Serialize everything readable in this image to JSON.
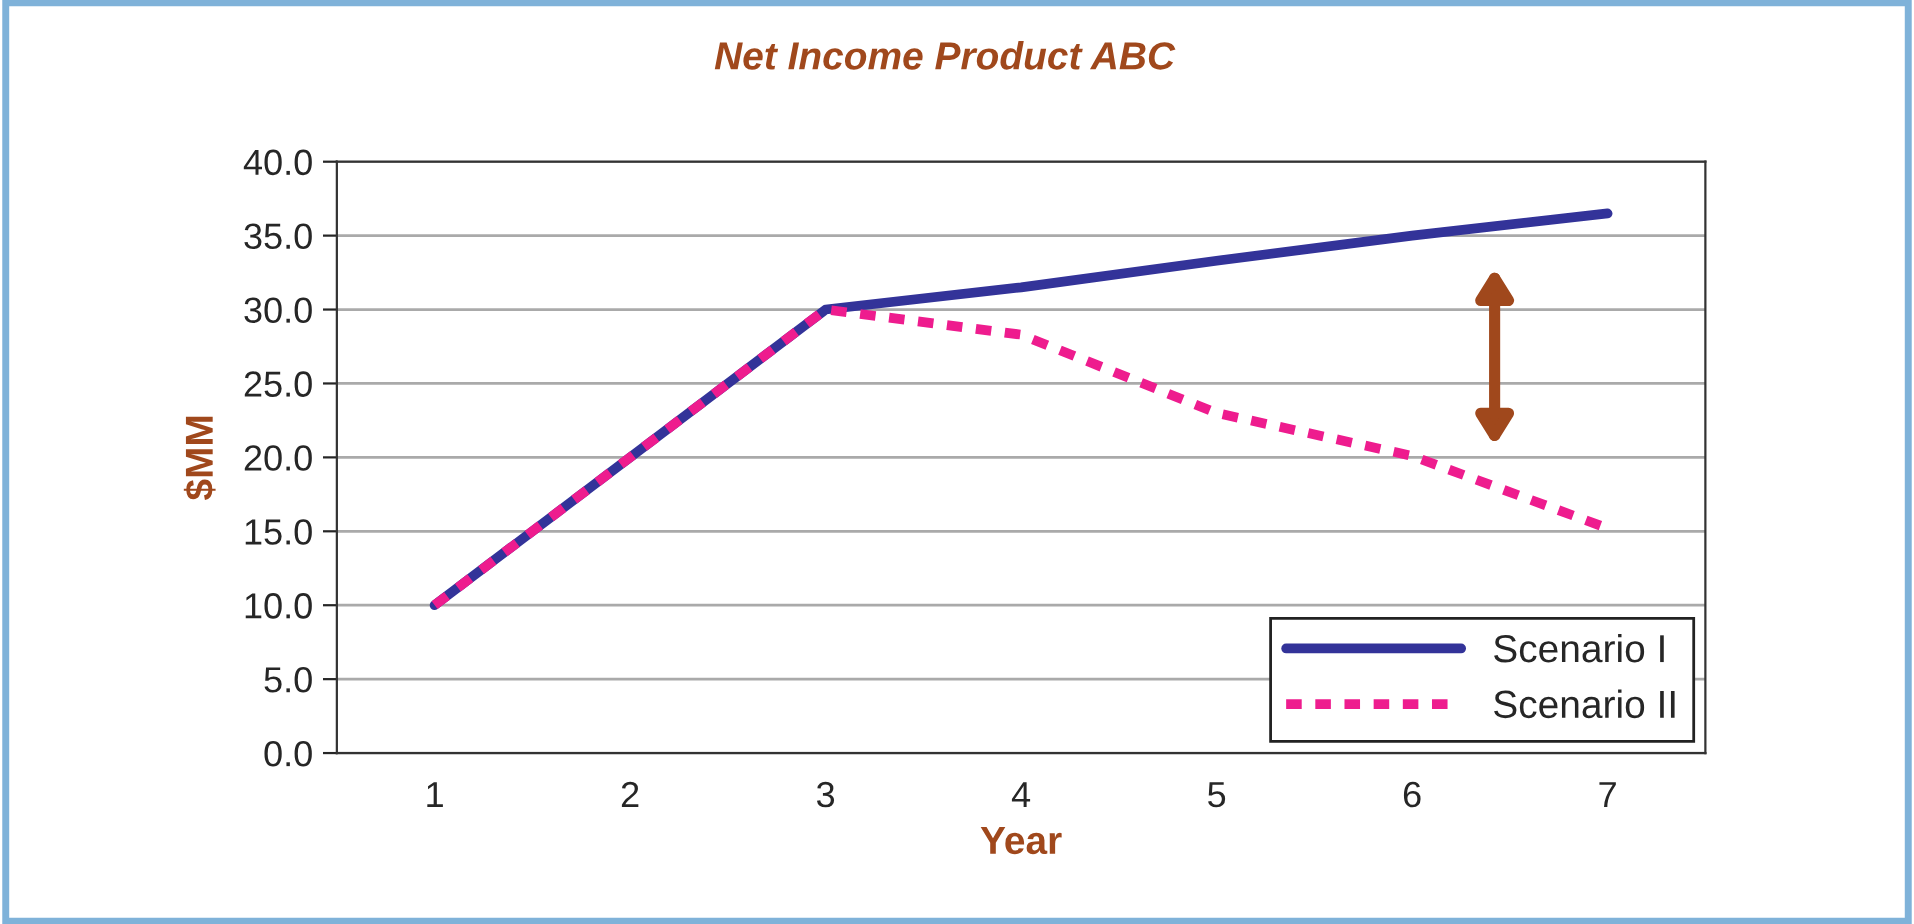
{
  "chart_data": {
    "type": "line",
    "title": "Net Income Product ABC",
    "xlabel": "Year",
    "ylabel": "$MM",
    "categories": [
      "1",
      "2",
      "3",
      "4",
      "5",
      "6",
      "7"
    ],
    "series": [
      {
        "name": "Scenario I",
        "color": "#333399",
        "line_style": "solid",
        "values": [
          10,
          20,
          30,
          31.5,
          33.3,
          35,
          36.5
        ]
      },
      {
        "name": "Scenario II",
        "color": "#ee1c8e",
        "line_style": "dashed",
        "values": [
          10,
          20,
          30,
          28.3,
          23,
          20.1,
          15.2
        ]
      }
    ],
    "ylim": [
      0,
      40
    ],
    "yticks": [
      {
        "value": 0,
        "label": "0.0"
      },
      {
        "value": 5,
        "label": "5.0"
      },
      {
        "value": 10,
        "label": "10.0"
      },
      {
        "value": 15,
        "label": "15.0"
      },
      {
        "value": 20,
        "label": "20.0"
      },
      {
        "value": 25,
        "label": "25.0"
      },
      {
        "value": 30,
        "label": "30.0"
      },
      {
        "value": 35,
        "label": "35.0"
      },
      {
        "value": 40,
        "label": "40.0"
      }
    ],
    "grid": "y",
    "legend": "bottom right",
    "marker": "none"
  }
}
